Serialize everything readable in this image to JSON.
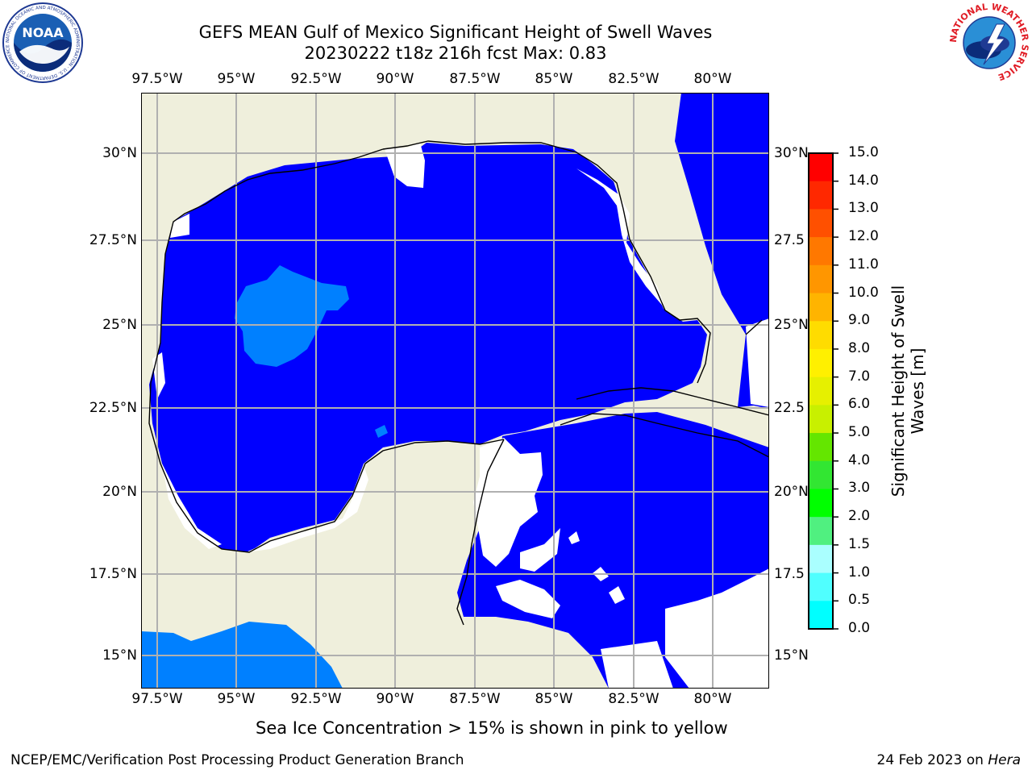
{
  "header": {
    "title_line1": "GEFS MEAN Gulf of Mexico Significant Height of Swell Waves",
    "title_line2": "20230222 t18z 216h fcst   Max: 0.83"
  },
  "map": {
    "lon_labels": [
      "97.5°W",
      "95°W",
      "92.5°W",
      "90°W",
      "87.5°W",
      "85°W",
      "82.5°W",
      "80°W"
    ],
    "lat_labels": [
      "30°N",
      "27.5°N",
      "25°N",
      "22.5°N",
      "20°N",
      "17.5°N",
      "15°N"
    ],
    "right_lat_labels": [
      "30°N",
      "27.5",
      "25°N",
      "22.5",
      "20°N",
      "17.5",
      "15°N"
    ],
    "colors": {
      "land": "#efefdc",
      "ocean_low": "#0000ff",
      "ocean_mid": "#0080ff",
      "no_data": "#ffffff",
      "grid": "#b0b0b0"
    }
  },
  "colorbar": {
    "label": "Significant Height of Swell Waves [m]",
    "label_line1": "Significant Height of Swell",
    "label_line2": "Waves [m]",
    "ticks": [
      "15.0",
      "14.0",
      "13.0",
      "12.0",
      "11.0",
      "10.0",
      "9.0",
      "8.0",
      "7.0",
      "6.0",
      "5.0",
      "4.0",
      "3.0",
      "2.0",
      "1.5",
      "1.0",
      "0.5",
      "0.0"
    ],
    "colors": [
      "#ff0000",
      "#ff2800",
      "#ff5000",
      "#ff7800",
      "#ff9600",
      "#ffb400",
      "#ffdc00",
      "#fff000",
      "#e6f000",
      "#c8f000",
      "#64e600",
      "#32e632",
      "#00ff00",
      "#50f080",
      "#aaffff",
      "#50ffff",
      "#00ffff",
      "#0080ff",
      "#0000ff"
    ]
  },
  "caption": "Sea Ice Concentration > 15% is shown in pink to yellow",
  "footer": {
    "left": "NCEP/EMC/Verification Post Processing Product Generation Branch",
    "right_date": "24 Feb 2023 on ",
    "right_host": "Hera"
  },
  "logos": {
    "noaa_text": "NOAA",
    "noaa_ring": "NATIONAL OCEANIC AND ATMOSPHERIC ADMINISTRATION · U.S. DEPARTMENT OF COMMERCE ·",
    "nws_ring": "NATIONAL WEATHER SERVICE"
  }
}
